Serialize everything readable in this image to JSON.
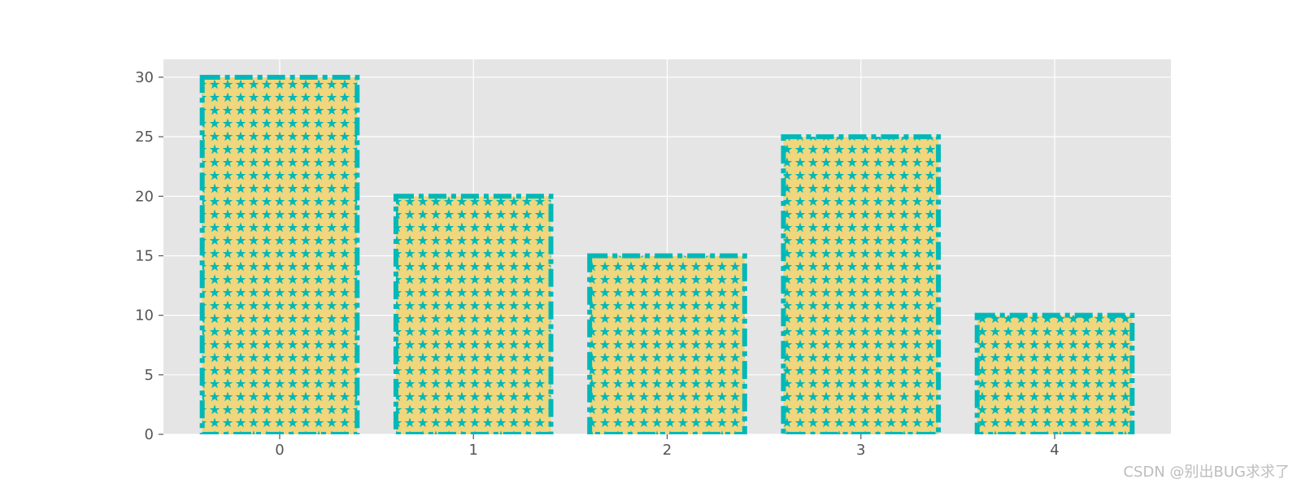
{
  "chart_data": {
    "type": "bar",
    "categories": [
      "0",
      "1",
      "2",
      "3",
      "4"
    ],
    "values": [
      30,
      20,
      15,
      25,
      10
    ],
    "title": "",
    "xlabel": "",
    "ylabel": "",
    "ylim": [
      0,
      31.5
    ],
    "yticks": [
      "0",
      "5",
      "10",
      "15",
      "20",
      "25",
      "30"
    ],
    "grid": true,
    "bar_fill_color": "#f0d67c",
    "bar_hatch": "star",
    "bar_hatch_color": "#00b8b8",
    "bar_edge_color": "#00b8b8",
    "bar_edge_style": "dashed",
    "axes_background": "#e5e5e5",
    "grid_color": "#ffffff"
  },
  "watermark": "CSDN @别出BUG求求了"
}
